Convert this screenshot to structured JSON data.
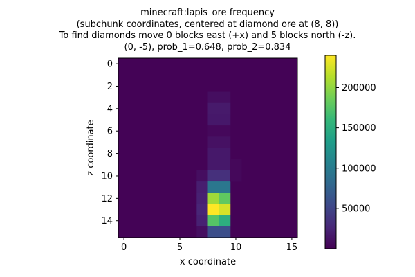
{
  "chart_data": {
    "type": "heatmap",
    "title_lines": [
      "minecraft:lapis_ore frequency",
      "(subchunk coordinates, centered at diamond ore at (8, 8))",
      "To find diamonds move 0 blocks east (+x) and 5 blocks north (-z).",
      "(0, -5), prob_1=0.648, prob_2=0.834"
    ],
    "xlabel": "x coordinate",
    "ylabel": "z coordinate",
    "xlim": [
      -0.5,
      15.5
    ],
    "ylim": [
      -0.5,
      15.5
    ],
    "x_ticks": [
      0,
      5,
      10,
      15
    ],
    "y_ticks": [
      0,
      2,
      4,
      6,
      8,
      10,
      12,
      14
    ],
    "colormap": "viridis",
    "colorbar": {
      "min": 0,
      "max": 240000,
      "ticks": [
        50000,
        100000,
        150000,
        200000
      ]
    },
    "background_value": 1500,
    "cells": [
      {
        "x": 7,
        "z": 10,
        "value": 9000
      },
      {
        "x": 7,
        "z": 11,
        "value": 20000
      },
      {
        "x": 7,
        "z": 12,
        "value": 22000
      },
      {
        "x": 7,
        "z": 13,
        "value": 25000
      },
      {
        "x": 7,
        "z": 14,
        "value": 22000
      },
      {
        "x": 7,
        "z": 15,
        "value": 9000
      },
      {
        "x": 8,
        "z": 3,
        "value": 9000
      },
      {
        "x": 8,
        "z": 4,
        "value": 17000
      },
      {
        "x": 8,
        "z": 5,
        "value": 16000
      },
      {
        "x": 8,
        "z": 6,
        "value": 5000
      },
      {
        "x": 8,
        "z": 7,
        "value": 11000
      },
      {
        "x": 8,
        "z": 8,
        "value": 16000
      },
      {
        "x": 8,
        "z": 9,
        "value": 16000
      },
      {
        "x": 8,
        "z": 10,
        "value": 33000
      },
      {
        "x": 8,
        "z": 11,
        "value": 95000
      },
      {
        "x": 8,
        "z": 12,
        "value": 205000
      },
      {
        "x": 8,
        "z": 13,
        "value": 240000
      },
      {
        "x": 8,
        "z": 14,
        "value": 175000
      },
      {
        "x": 8,
        "z": 15,
        "value": 58000
      },
      {
        "x": 9,
        "z": 3,
        "value": 9000
      },
      {
        "x": 9,
        "z": 4,
        "value": 17000
      },
      {
        "x": 9,
        "z": 5,
        "value": 16000
      },
      {
        "x": 9,
        "z": 6,
        "value": 5000
      },
      {
        "x": 9,
        "z": 7,
        "value": 11000
      },
      {
        "x": 9,
        "z": 8,
        "value": 16000
      },
      {
        "x": 9,
        "z": 9,
        "value": 16000
      },
      {
        "x": 9,
        "z": 10,
        "value": 33000
      },
      {
        "x": 9,
        "z": 11,
        "value": 95000
      },
      {
        "x": 9,
        "z": 12,
        "value": 180000
      },
      {
        "x": 9,
        "z": 13,
        "value": 225000
      },
      {
        "x": 9,
        "z": 14,
        "value": 150000
      },
      {
        "x": 9,
        "z": 15,
        "value": 58000
      },
      {
        "x": 10,
        "z": 9,
        "value": 4500
      },
      {
        "x": 10,
        "z": 10,
        "value": 5000
      }
    ]
  }
}
